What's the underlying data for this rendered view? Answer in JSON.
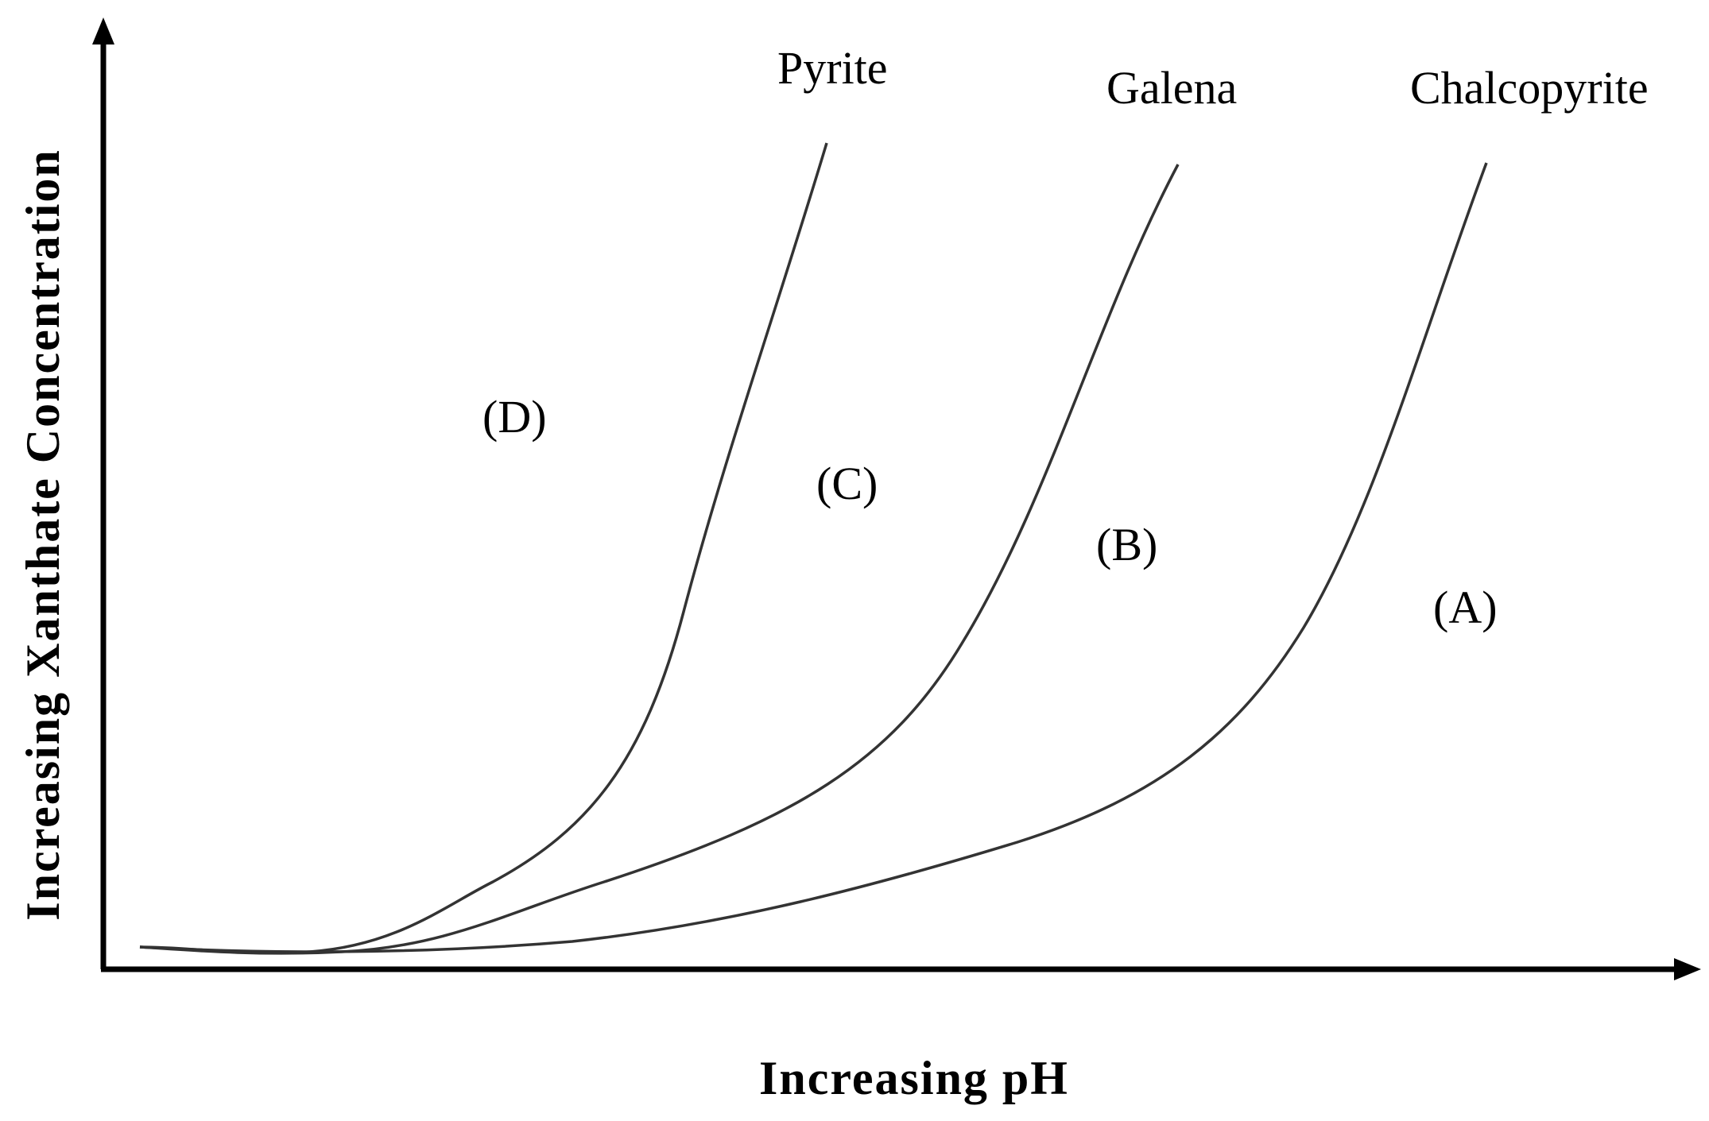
{
  "diagram": {
    "x_axis_title": "Increasing pH",
    "y_axis_title": "Increasing Xanthate Concentration",
    "curves": [
      {
        "label": "Pyrite"
      },
      {
        "label": "Galena"
      },
      {
        "label": "Chalcopyrite"
      }
    ],
    "regions": [
      {
        "label": "(D)"
      },
      {
        "label": "(C)"
      },
      {
        "label": "(B)"
      },
      {
        "label": "(A)"
      }
    ],
    "colors": {
      "axis": "#000000",
      "curve": "#333333",
      "text": "#000000",
      "background": "#ffffff"
    }
  }
}
